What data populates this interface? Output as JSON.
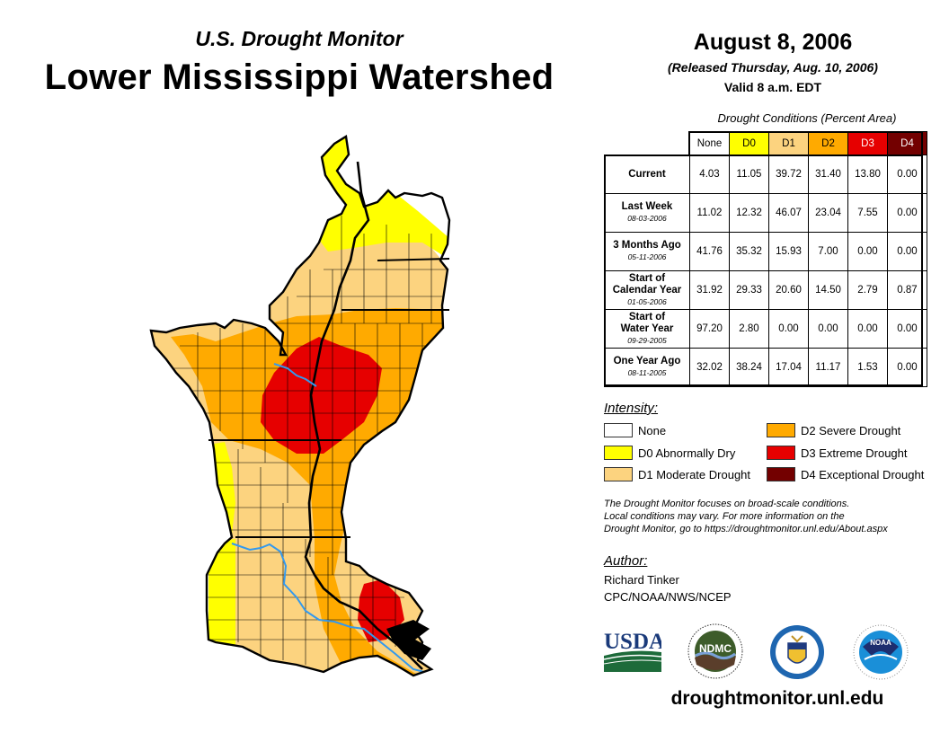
{
  "header": {
    "subtitle": "U.S. Drought Monitor",
    "title": "Lower Mississippi Watershed",
    "date": "August 8, 2006",
    "released": "(Released Thursday, Aug. 10, 2006)",
    "valid": "Valid 8 a.m. EDT"
  },
  "colors": {
    "none": "#ffffff",
    "d0": "#ffff00",
    "d1": "#fcd37f",
    "d2": "#ffaa00",
    "d3": "#e60000",
    "d4": "#730000",
    "river": "#3399ee"
  },
  "table": {
    "title": "Drought Conditions (Percent Area)",
    "columns": [
      "None",
      "D0",
      "D1",
      "D2",
      "D3",
      "D4"
    ],
    "rows": [
      {
        "label": "Current",
        "label2": "",
        "date": "",
        "values": [
          "4.03",
          "11.05",
          "39.72",
          "31.40",
          "13.80",
          "0.00"
        ]
      },
      {
        "label": "Last Week",
        "label2": "",
        "date": "08-03-2006",
        "values": [
          "11.02",
          "12.32",
          "46.07",
          "23.04",
          "7.55",
          "0.00"
        ]
      },
      {
        "label": "3 Months Ago",
        "label2": "",
        "date": "05-11-2006",
        "values": [
          "41.76",
          "35.32",
          "15.93",
          "7.00",
          "0.00",
          "0.00"
        ]
      },
      {
        "label": "Start of",
        "label2": "Calendar Year",
        "date": "01-05-2006",
        "values": [
          "31.92",
          "29.33",
          "20.60",
          "14.50",
          "2.79",
          "0.87"
        ]
      },
      {
        "label": "Start of",
        "label2": "Water Year",
        "date": "09-29-2005",
        "values": [
          "97.20",
          "2.80",
          "0.00",
          "0.00",
          "0.00",
          "0.00"
        ]
      },
      {
        "label": "One Year Ago",
        "label2": "",
        "date": "08-11-2005",
        "values": [
          "32.02",
          "38.24",
          "17.04",
          "11.17",
          "1.53",
          "0.00"
        ]
      }
    ]
  },
  "legend": {
    "title": "Intensity:",
    "items": [
      {
        "key": "none",
        "label": "None"
      },
      {
        "key": "d0",
        "label": "D0 Abnormally Dry"
      },
      {
        "key": "d1",
        "label": "D1 Moderate Drought"
      },
      {
        "key": "d2",
        "label": "D2 Severe Drought"
      },
      {
        "key": "d3",
        "label": "D3 Extreme Drought"
      },
      {
        "key": "d4",
        "label": "D4 Exceptional Drought"
      }
    ]
  },
  "note": {
    "line1": "The Drought Monitor focuses on broad-scale conditions.",
    "line2": "Local conditions may vary. For more information on the",
    "line3": "Drought Monitor, go to https://droughtmonitor.unl.edu/About.aspx"
  },
  "author": {
    "heading": "Author:",
    "name": "Richard Tinker",
    "org": "CPC/NOAA/NWS/NCEP"
  },
  "logos": {
    "usda": "USDA",
    "ndmc": "NDMC",
    "noaa": "NOAA"
  },
  "footer": {
    "url": "droughtmonitor.unl.edu"
  }
}
